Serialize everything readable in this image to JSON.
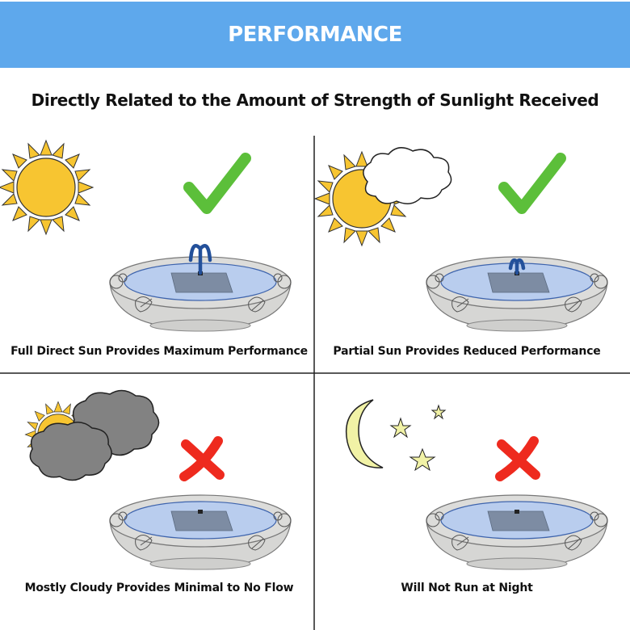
{
  "header": {
    "title": "PERFORMANCE",
    "color": "#5ea8ec"
  },
  "subtitle": "Directly Related to the Amount of Strength of Sunlight Received",
  "quadrants": [
    {
      "caption": "Full Direct Sun Provides Maximum Performance",
      "weather_icon": "sun-icon",
      "status_icon": "checkmark-icon",
      "fountain_flow": "full"
    },
    {
      "caption": "Partial Sun Provides Reduced Performance",
      "weather_icon": "sun-behind-cloud-icon",
      "status_icon": "checkmark-icon",
      "fountain_flow": "reduced"
    },
    {
      "caption": "Mostly Cloudy Provides Minimal to No Flow",
      "weather_icon": "dark-clouds-icon",
      "status_icon": "x-icon",
      "fountain_flow": "none"
    },
    {
      "caption": "Will Not Run at Night",
      "weather_icon": "moon-stars-icon",
      "status_icon": "x-icon",
      "fountain_flow": "none"
    }
  ],
  "colors": {
    "check": "#5cbf3a",
    "cross": "#ee2a1e",
    "sun": "#f7c531",
    "water": "#b9cdee",
    "spray": "#23509a"
  }
}
